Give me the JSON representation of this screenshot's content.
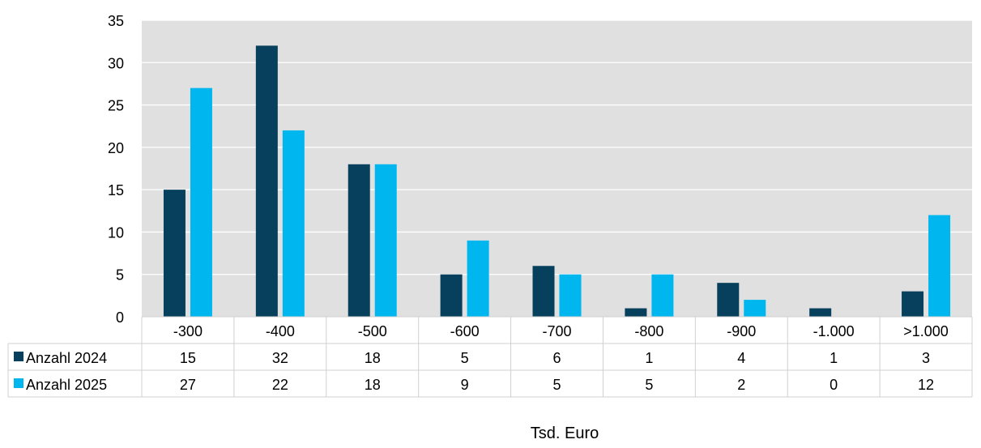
{
  "chart_data": {
    "type": "bar",
    "categories": [
      "-300",
      "-400",
      "-500",
      "-600",
      "-700",
      "-800",
      "-900",
      "-1.000",
      ">1.000"
    ],
    "series": [
      {
        "name": "Anzahl 2024",
        "values": [
          15,
          32,
          18,
          5,
          6,
          1,
          4,
          1,
          3
        ],
        "color": "#06405c"
      },
      {
        "name": "Anzahl 2025",
        "values": [
          27,
          22,
          18,
          9,
          5,
          5,
          2,
          0,
          12
        ],
        "color": "#00b6ef"
      }
    ],
    "title": "",
    "xlabel": "Tsd. Euro",
    "ylabel": "",
    "ylim": [
      0,
      35
    ],
    "yticks": [
      0,
      5,
      10,
      15,
      20,
      25,
      30,
      35
    ],
    "grid": true,
    "plot_background": "#e0e0e0",
    "legend": "data-table",
    "data_table": true
  }
}
